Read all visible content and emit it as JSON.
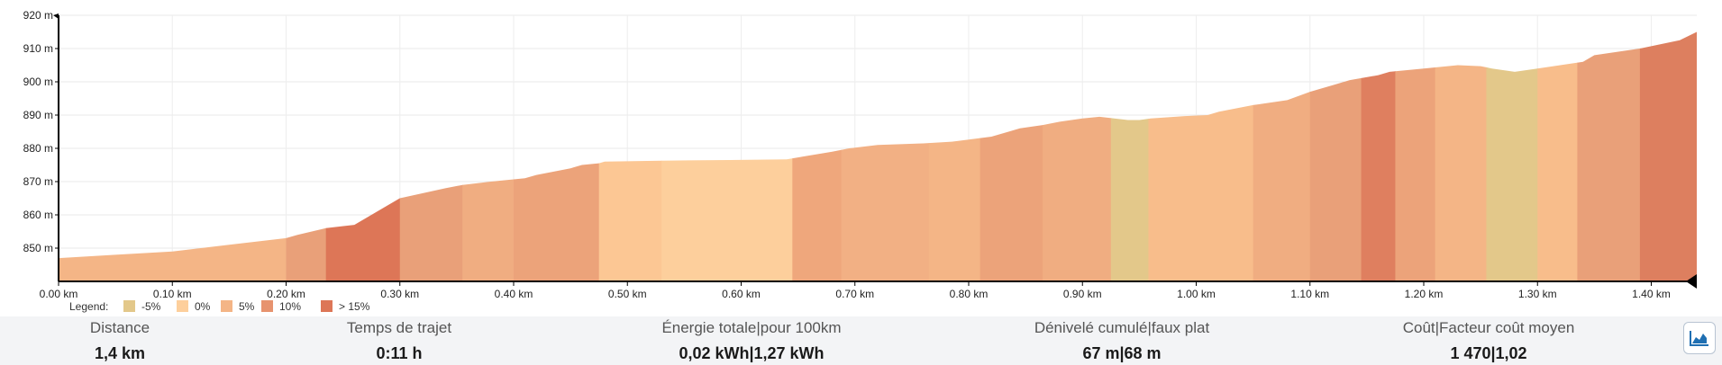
{
  "chart_data": {
    "type": "area",
    "title": "",
    "xlabel": "",
    "ylabel": "",
    "xlim": [
      0,
      1.44
    ],
    "ylim": [
      840,
      920
    ],
    "x_ticks": [
      "0.00 km",
      "0.10 km",
      "0.20 km",
      "0.30 km",
      "0.40 km",
      "0.50 km",
      "0.60 km",
      "0.70 km",
      "0.80 km",
      "0.90 km",
      "1.00 km",
      "1.10 km",
      "1.20 km",
      "1.30 km",
      "1.40 km"
    ],
    "y_ticks": [
      "850 m",
      "860 m",
      "870 m",
      "880 m",
      "890 m",
      "900 m",
      "910 m",
      "920 m"
    ],
    "grid": true,
    "x": [
      0,
      0.05,
      0.1,
      0.15,
      0.2,
      0.21,
      0.235,
      0.26,
      0.29,
      0.3,
      0.34,
      0.355,
      0.38,
      0.41,
      0.42,
      0.45,
      0.46,
      0.475,
      0.48,
      0.53,
      0.59,
      0.64,
      0.68,
      0.695,
      0.72,
      0.76,
      0.785,
      0.79,
      0.82,
      0.835,
      0.845,
      0.865,
      0.88,
      0.9,
      0.915,
      0.94,
      0.95,
      0.96,
      0.99,
      1.01,
      1.02,
      1.05,
      1.08,
      1.1,
      1.12,
      1.135,
      1.16,
      1.17,
      1.2,
      1.23,
      1.25,
      1.26,
      1.28,
      1.3,
      1.34,
      1.35,
      1.39,
      1.425,
      1.44
    ],
    "y": [
      847,
      848,
      849,
      851,
      853,
      854,
      856,
      857,
      863,
      865,
      868,
      869,
      870,
      871,
      872,
      874,
      875,
      875.5,
      876,
      876.3,
      876.5,
      876.7,
      879,
      880,
      881,
      881.5,
      882,
      882.2,
      883.5,
      885,
      886,
      887,
      888,
      889,
      889.5,
      888.5,
      888.5,
      889,
      889.7,
      890,
      891,
      893,
      894.5,
      897,
      899,
      900.5,
      902,
      903,
      904,
      905,
      904.7,
      904,
      903,
      904,
      906,
      908,
      910,
      912.5,
      915
    ],
    "grade_colors": [
      "#e3c88a",
      "#fdcf9c",
      "#f4b586",
      "#e7936f",
      "#dd7657"
    ],
    "segments": [
      {
        "x0": 0.0,
        "x1": 0.2,
        "color": "#f4b586"
      },
      {
        "x0": 0.2,
        "x1": 0.235,
        "color": "#e9a079"
      },
      {
        "x0": 0.235,
        "x1": 0.3,
        "color": "#dd7657"
      },
      {
        "x0": 0.3,
        "x1": 0.355,
        "color": "#e9a079"
      },
      {
        "x0": 0.355,
        "x1": 0.4,
        "color": "#f0ad81"
      },
      {
        "x0": 0.4,
        "x1": 0.475,
        "color": "#eca37a"
      },
      {
        "x0": 0.475,
        "x1": 0.53,
        "color": "#fcc794"
      },
      {
        "x0": 0.53,
        "x1": 0.645,
        "color": "#fdcf9c"
      },
      {
        "x0": 0.645,
        "x1": 0.688,
        "color": "#efa77c"
      },
      {
        "x0": 0.688,
        "x1": 0.765,
        "color": "#f2b084"
      },
      {
        "x0": 0.765,
        "x1": 0.81,
        "color": "#f4b586"
      },
      {
        "x0": 0.81,
        "x1": 0.865,
        "color": "#eca37a"
      },
      {
        "x0": 0.865,
        "x1": 0.925,
        "color": "#f0ad81"
      },
      {
        "x0": 0.925,
        "x1": 0.958,
        "color": "#e3c88a"
      },
      {
        "x0": 0.958,
        "x1": 1.05,
        "color": "#f8bd8b"
      },
      {
        "x0": 1.05,
        "x1": 1.1,
        "color": "#f0ad81"
      },
      {
        "x0": 1.1,
        "x1": 1.145,
        "color": "#e9a079"
      },
      {
        "x0": 1.145,
        "x1": 1.175,
        "color": "#df7f5f"
      },
      {
        "x0": 1.175,
        "x1": 1.21,
        "color": "#eca37a"
      },
      {
        "x0": 1.21,
        "x1": 1.255,
        "color": "#f4b586"
      },
      {
        "x0": 1.255,
        "x1": 1.3,
        "color": "#e3c88a"
      },
      {
        "x0": 1.3,
        "x1": 1.335,
        "color": "#f8bd8b"
      },
      {
        "x0": 1.335,
        "x1": 1.39,
        "color": "#e9a079"
      },
      {
        "x0": 1.39,
        "x1": 1.44,
        "color": "#dd7f5f"
      }
    ]
  },
  "legend": {
    "label": "Legend:",
    "items": [
      {
        "label": "-5%",
        "color": "#e3c88a"
      },
      {
        "label": "0%",
        "color": "#fdcf9c"
      },
      {
        "label": "5%",
        "color": "#f4b586"
      },
      {
        "label": "10%",
        "color": "#e7936f"
      },
      {
        "label": "> 15%",
        "color": "#dd7657"
      }
    ]
  },
  "stats": [
    {
      "title": "Distance",
      "value": "1,4 km"
    },
    {
      "title": "Temps de trajet",
      "value": "0:11 h"
    },
    {
      "title": "Énergie totale|pour 100km",
      "value": "0,02 kWh|1,27 kWh"
    },
    {
      "title": "Dénivelé cumulé|faux plat",
      "value": "67 m|68 m"
    },
    {
      "title": "Coût|Facteur coût moyen",
      "value": "1 470|1,02"
    }
  ],
  "toggle": {
    "icon": "area-chart-icon"
  }
}
